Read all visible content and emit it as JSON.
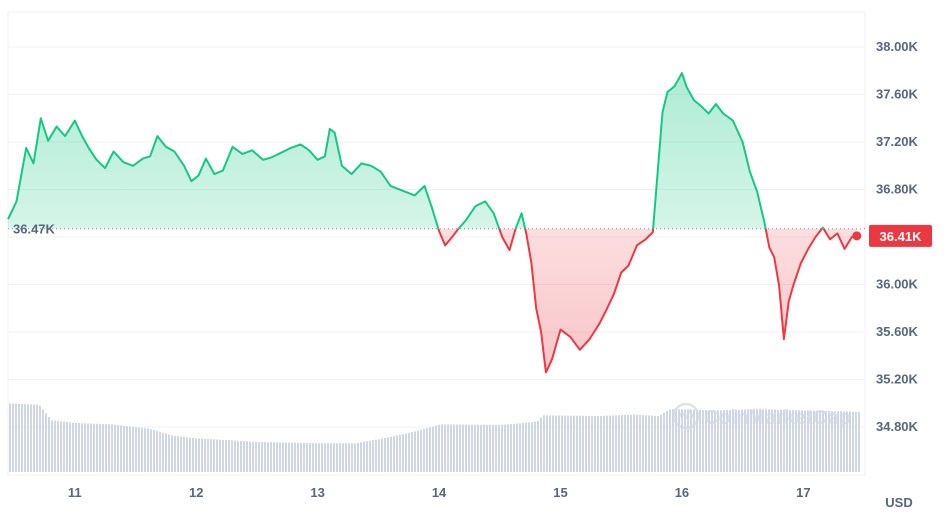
{
  "chart_data": {
    "type": "area",
    "reference_price": 36470,
    "reference_label": "36.47K",
    "current_price": 36410,
    "current_label": "36.41K",
    "ylim": [
      34800,
      38000
    ],
    "y_ticks": [
      {
        "value": 38000,
        "label": "38.00K"
      },
      {
        "value": 37600,
        "label": "37.60K"
      },
      {
        "value": 37200,
        "label": "37.20K"
      },
      {
        "value": 36800,
        "label": "36.80K"
      },
      {
        "value": 36400,
        "label": ""
      },
      {
        "value": 36000,
        "label": "36.00K"
      },
      {
        "value": 35600,
        "label": "35.60K"
      },
      {
        "value": 35200,
        "label": "35.20K"
      },
      {
        "value": 34800,
        "label": "34.80K"
      }
    ],
    "x_ticks": [
      {
        "value": 11,
        "label": "11"
      },
      {
        "value": 12,
        "label": "12"
      },
      {
        "value": 13,
        "label": "13"
      },
      {
        "value": 14,
        "label": "14"
      },
      {
        "value": 15,
        "label": "15"
      },
      {
        "value": 16,
        "label": "16"
      },
      {
        "value": 17,
        "label": "17"
      }
    ],
    "xlim": [
      10.45,
      17.45
    ],
    "currency_label": "USD",
    "watermark": "CoinMarketCap",
    "colors": {
      "up": "#16c784",
      "down": "#ea3943",
      "grid": "#eff2f5",
      "axis_text": "#58667e",
      "volume": "#cfd6e4"
    },
    "price_series": [
      [
        10.45,
        36550
      ],
      [
        10.52,
        36700
      ],
      [
        10.6,
        37150
      ],
      [
        10.66,
        37020
      ],
      [
        10.72,
        37400
      ],
      [
        10.78,
        37210
      ],
      [
        10.85,
        37330
      ],
      [
        10.92,
        37250
      ],
      [
        11.0,
        37380
      ],
      [
        11.06,
        37250
      ],
      [
        11.12,
        37140
      ],
      [
        11.18,
        37050
      ],
      [
        11.25,
        36980
      ],
      [
        11.32,
        37120
      ],
      [
        11.4,
        37030
      ],
      [
        11.48,
        37000
      ],
      [
        11.56,
        37060
      ],
      [
        11.62,
        37080
      ],
      [
        11.68,
        37250
      ],
      [
        11.75,
        37160
      ],
      [
        11.82,
        37120
      ],
      [
        11.9,
        37000
      ],
      [
        11.96,
        36870
      ],
      [
        12.02,
        36920
      ],
      [
        12.08,
        37060
      ],
      [
        12.15,
        36930
      ],
      [
        12.22,
        36960
      ],
      [
        12.3,
        37160
      ],
      [
        12.38,
        37100
      ],
      [
        12.46,
        37130
      ],
      [
        12.55,
        37050
      ],
      [
        12.62,
        37070
      ],
      [
        12.7,
        37110
      ],
      [
        12.78,
        37150
      ],
      [
        12.86,
        37180
      ],
      [
        12.93,
        37130
      ],
      [
        13.0,
        37050
      ],
      [
        13.06,
        37080
      ],
      [
        13.1,
        37310
      ],
      [
        13.14,
        37280
      ],
      [
        13.2,
        37000
      ],
      [
        13.28,
        36930
      ],
      [
        13.36,
        37020
      ],
      [
        13.44,
        37000
      ],
      [
        13.52,
        36950
      ],
      [
        13.6,
        36830
      ],
      [
        13.7,
        36790
      ],
      [
        13.8,
        36750
      ],
      [
        13.88,
        36830
      ],
      [
        13.94,
        36650
      ],
      [
        14.0,
        36450
      ],
      [
        14.05,
        36330
      ],
      [
        14.1,
        36390
      ],
      [
        14.16,
        36470
      ],
      [
        14.22,
        36540
      ],
      [
        14.3,
        36660
      ],
      [
        14.38,
        36700
      ],
      [
        14.45,
        36600
      ],
      [
        14.52,
        36400
      ],
      [
        14.58,
        36290
      ],
      [
        14.63,
        36470
      ],
      [
        14.68,
        36600
      ],
      [
        14.72,
        36420
      ],
      [
        14.76,
        36180
      ],
      [
        14.8,
        35800
      ],
      [
        14.84,
        35600
      ],
      [
        14.88,
        35260
      ],
      [
        14.93,
        35370
      ],
      [
        15.0,
        35620
      ],
      [
        15.08,
        35560
      ],
      [
        15.16,
        35450
      ],
      [
        15.24,
        35540
      ],
      [
        15.32,
        35670
      ],
      [
        15.38,
        35790
      ],
      [
        15.44,
        35920
      ],
      [
        15.5,
        36100
      ],
      [
        15.56,
        36160
      ],
      [
        15.63,
        36330
      ],
      [
        15.7,
        36380
      ],
      [
        15.76,
        36440
      ],
      [
        15.8,
        36940
      ],
      [
        15.84,
        37450
      ],
      [
        15.88,
        37620
      ],
      [
        15.94,
        37670
      ],
      [
        16.0,
        37780
      ],
      [
        16.04,
        37660
      ],
      [
        16.1,
        37550
      ],
      [
        16.16,
        37500
      ],
      [
        16.22,
        37440
      ],
      [
        16.28,
        37520
      ],
      [
        16.34,
        37440
      ],
      [
        16.42,
        37380
      ],
      [
        16.5,
        37200
      ],
      [
        16.56,
        36950
      ],
      [
        16.62,
        36780
      ],
      [
        16.68,
        36520
      ],
      [
        16.72,
        36310
      ],
      [
        16.76,
        36230
      ],
      [
        16.8,
        35990
      ],
      [
        16.84,
        35540
      ],
      [
        16.88,
        35860
      ],
      [
        16.92,
        36000
      ],
      [
        16.98,
        36180
      ],
      [
        17.04,
        36300
      ],
      [
        17.1,
        36400
      ],
      [
        17.16,
        36480
      ],
      [
        17.22,
        36380
      ],
      [
        17.28,
        36430
      ],
      [
        17.34,
        36300
      ],
      [
        17.4,
        36400
      ],
      [
        17.44,
        36410
      ]
    ],
    "volume_series": [
      [
        10.45,
        0.98
      ],
      [
        10.7,
        0.96
      ],
      [
        10.8,
        0.74
      ],
      [
        11.0,
        0.7
      ],
      [
        11.3,
        0.68
      ],
      [
        11.6,
        0.62
      ],
      [
        11.8,
        0.52
      ],
      [
        12.0,
        0.48
      ],
      [
        12.5,
        0.43
      ],
      [
        13.0,
        0.41
      ],
      [
        13.3,
        0.41
      ],
      [
        13.5,
        0.47
      ],
      [
        13.8,
        0.58
      ],
      [
        14.0,
        0.68
      ],
      [
        14.5,
        0.67
      ],
      [
        14.8,
        0.72
      ],
      [
        14.85,
        0.81
      ],
      [
        15.3,
        0.8
      ],
      [
        15.6,
        0.82
      ],
      [
        15.8,
        0.8
      ],
      [
        15.9,
        0.9
      ],
      [
        16.3,
        0.88
      ],
      [
        16.6,
        0.9
      ],
      [
        17.0,
        0.88
      ],
      [
        17.45,
        0.86
      ]
    ]
  }
}
